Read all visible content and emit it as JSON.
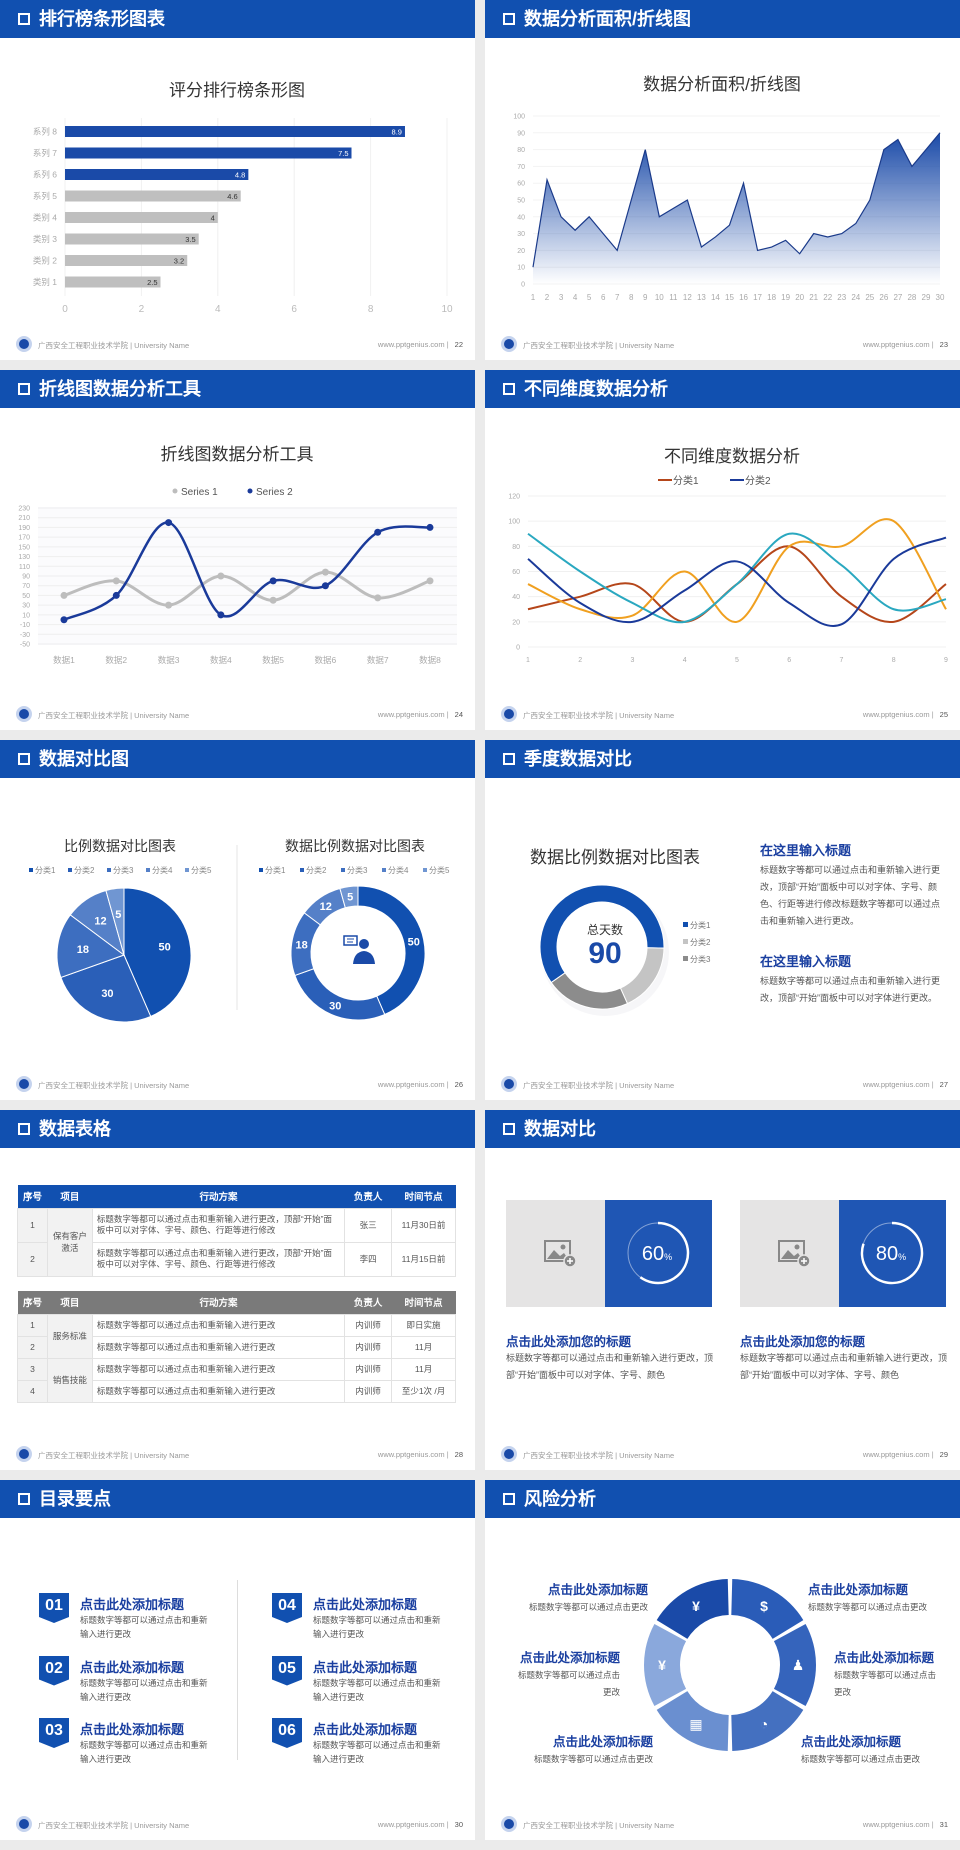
{
  "footer": {
    "school": "广西安全工程职业技术学院 | University Name",
    "url": "www.pptgenius.com",
    "separator": "|"
  },
  "colors": {
    "header": "#1150b0",
    "accent": "#1a4aa8",
    "heading_text": "#1a3fa0"
  },
  "slides": [
    {
      "title": "排行榜条形图表",
      "page": "22"
    },
    {
      "title": "数据分析面积/折线图",
      "page": "23"
    },
    {
      "title": "折线图数据分析工具",
      "page": "24"
    },
    {
      "title": "不同维度数据分析",
      "page": "25"
    },
    {
      "title": "数据对比图",
      "page": "26",
      "center_icon": "presenter-icon"
    },
    {
      "title": "季度数据对比",
      "page": "27",
      "items": [
        {
          "heading": "在这里输入标题",
          "body": "标题数字等都可以通过点击和重新输入进行更改，顶部“开始”面板中可以对字体、字号、颜色、行距等进行修改标题数字等都可以通过点击和重新输入进行更改。"
        },
        {
          "heading": "在这里输入标题",
          "body": "标题数字等都可以通过点击和重新输入进行更改，顶部“开始”面板中可以对字体进行更改。"
        }
      ]
    },
    {
      "title": "数据表格",
      "page": "28",
      "headers": [
        "序号",
        "项目",
        "行动方案",
        "负责人",
        "时间节点"
      ],
      "table1": {
        "groups": [
          "保有客户激活"
        ],
        "rows": [
          {
            "no": "1",
            "plan": "标题数字等都可以通过点击和重新输入进行更改，顶部“开始”面板中可以对字体、字号、颜色、行距等进行修改",
            "owner": "张三",
            "time": "11月30日前"
          },
          {
            "no": "2",
            "plan": "标题数字等都可以通过点击和重新输入进行更改，顶部“开始”面板中可以对字体、字号、颜色、行距等进行修改",
            "owner": "李四",
            "time": "11月15日前"
          }
        ]
      },
      "table2": {
        "groups": [
          "服务标准",
          "销售技能"
        ],
        "rows": [
          {
            "no": "1",
            "plan": "标题数字等都可以通过点击和重新输入进行更改",
            "owner": "内训师",
            "time": "即日实施"
          },
          {
            "no": "2",
            "plan": "标题数字等都可以通过点击和重新输入进行更改",
            "owner": "内训师",
            "time": "11月"
          },
          {
            "no": "3",
            "plan": "标题数字等都可以通过点击和重新输入进行更改",
            "owner": "内训师",
            "time": "11月"
          },
          {
            "no": "4",
            "plan": "标题数字等都可以通过点击和重新输入进行更改",
            "owner": "内训师",
            "time": "至少1次 /月"
          }
        ]
      }
    },
    {
      "title": "数据对比",
      "page": "29",
      "cards": [
        {
          "percent": 60,
          "value": "60",
          "unit": "%",
          "icon": "image-add-icon",
          "heading": "点击此处添加您的标题",
          "body": "标题数字等都可以通过点击和重新输入进行更改，顶部“开始”面板中可以对字体、字号、颜色"
        },
        {
          "percent": 80,
          "value": "80",
          "unit": "%",
          "icon": "image-add-icon",
          "heading": "点击此处添加您的标题",
          "body": "标题数字等都可以通过点击和重新输入进行更改，顶部“开始”面板中可以对字体、字号、颜色"
        }
      ]
    },
    {
      "title": "目录要点",
      "page": "30",
      "items": [
        {
          "num": "01",
          "heading": "点击此处添加标题",
          "body": "标题数字等都可以通过点击和重新输入进行更改"
        },
        {
          "num": "02",
          "heading": "点击此处添加标题",
          "body": "标题数字等都可以通过点击和重新输入进行更改"
        },
        {
          "num": "03",
          "heading": "点击此处添加标题",
          "body": "标题数字等都可以通过点击和重新输入进行更改"
        },
        {
          "num": "04",
          "heading": "点击此处添加标题",
          "body": "标题数字等都可以通过点击和重新输入进行更改"
        },
        {
          "num": "05",
          "heading": "点击此处添加标题",
          "body": "标题数字等都可以通过点击和重新输入进行更改"
        },
        {
          "num": "06",
          "heading": "点击此处添加标题",
          "body": "标题数字等都可以通过点击和重新输入进行更改"
        }
      ]
    },
    {
      "title": "风险分析",
      "page": "31",
      "items": [
        {
          "heading": "点击此处添加标题",
          "body": "标题数字等都可以通过点击更改",
          "icon": "money-bag-icon"
        },
        {
          "heading": "点击此处添加标题",
          "body": "标题数字等都可以通过点击更改",
          "icon": "coins-icon"
        },
        {
          "heading": "点击此处添加标题",
          "body": "标题数字等都可以通过点击更改",
          "icon": "users-icon"
        },
        {
          "heading": "点击此处添加标题",
          "body": "标题数字等都可以通过点击更改",
          "icon": "pie-chart-icon"
        },
        {
          "heading": "点击此处添加标题",
          "body": "标题数字等都可以通过点击更改",
          "icon": "building-icon"
        },
        {
          "heading": "点击此处添加标题",
          "body": "标题数字等都可以通过点击更改",
          "icon": "yen-hand-icon"
        }
      ]
    }
  ],
  "chart_data": [
    {
      "type": "bar",
      "orientation": "horizontal",
      "title": "评分排行榜条形图",
      "categories": [
        "类别 1",
        "类别 2",
        "类别 3",
        "类别 4",
        "系列 5",
        "系列 6",
        "系列 7",
        "系列 8"
      ],
      "values": [
        2.5,
        3.2,
        3.5,
        4,
        4.6,
        4.8,
        7.5,
        8.9
      ],
      "value_labels": [
        "2.5",
        "3.2",
        "3.5",
        "4",
        "4.6",
        "4.8",
        "7.5",
        "8.9"
      ],
      "bar_colors": [
        "#bfbfbf",
        "#bfbfbf",
        "#bfbfbf",
        "#bfbfbf",
        "#bfbfbf",
        "#1a4aa8",
        "#1a4aa8",
        "#1a4aa8"
      ],
      "xlim": [
        0,
        10
      ],
      "xticks": [
        "0",
        "2",
        "4",
        "6",
        "8",
        "10"
      ],
      "grid": true
    },
    {
      "type": "area",
      "title": "数据分析面积/折线图",
      "x": [
        "1",
        "2",
        "3",
        "4",
        "5",
        "6",
        "7",
        "8",
        "9",
        "10",
        "11",
        "12",
        "13",
        "14",
        "15",
        "16",
        "17",
        "18",
        "19",
        "20",
        "21",
        "22",
        "23",
        "24",
        "25",
        "26",
        "27",
        "28",
        "29",
        "30"
      ],
      "values": [
        10,
        62,
        40,
        32,
        40,
        30,
        20,
        50,
        80,
        40,
        45,
        50,
        22,
        28,
        35,
        60,
        20,
        22,
        26,
        18,
        30,
        28,
        30,
        36,
        50,
        80,
        86,
        70,
        80,
        90
      ],
      "ylim": [
        0,
        100
      ],
      "yticks": [
        "0",
        "10",
        "20",
        "30",
        "40",
        "50",
        "60",
        "70",
        "80",
        "90",
        "100"
      ],
      "color": "#1a4aa8"
    },
    {
      "type": "line",
      "smooth": true,
      "title": "折线图数据分析工具",
      "categories": [
        "数据1",
        "数据2",
        "数据3",
        "数据4",
        "数据5",
        "数据6",
        "数据7",
        "数据8"
      ],
      "series": [
        {
          "name": "Series 1",
          "values": [
            50,
            80,
            30,
            90,
            40,
            98,
            45,
            80
          ],
          "color": "#bdbdbd"
        },
        {
          "name": "Series 2",
          "values": [
            0,
            50,
            200,
            10,
            80,
            70,
            180,
            190
          ],
          "color": "#1a3a9a"
        }
      ],
      "ylim": [
        -50,
        230
      ],
      "yticks": [
        "-50",
        "-30",
        "-10",
        "10",
        "30",
        "50",
        "70",
        "90",
        "110",
        "130",
        "150",
        "170",
        "190",
        "210",
        "230"
      ],
      "legend": "top"
    },
    {
      "type": "line",
      "smooth": true,
      "title": "不同维度数据分析",
      "categories": [
        "1",
        "2",
        "3",
        "4",
        "5",
        "6",
        "7",
        "8",
        "9"
      ],
      "series": [
        {
          "name": "分类1",
          "values": [
            30,
            40,
            50,
            20,
            50,
            80,
            40,
            20,
            50
          ],
          "color": "#b5461a"
        },
        {
          "values": [
            50,
            30,
            25,
            60,
            20,
            80,
            80,
            100,
            30
          ],
          "color": "#f0a020"
        },
        {
          "values": [
            90,
            60,
            35,
            20,
            50,
            90,
            65,
            30,
            38
          ],
          "color": "#2aa8c0"
        },
        {
          "name": "分类2",
          "values": [
            70,
            35,
            20,
            45,
            68,
            35,
            18,
            70,
            87
          ],
          "color": "#1a3a9a"
        }
      ],
      "ylim": [
        0,
        120
      ],
      "yticks": [
        "0",
        "20",
        "40",
        "60",
        "80",
        "100",
        "120"
      ],
      "legend": "top"
    },
    {
      "type": "pie",
      "title": "比例数据对比图表",
      "categories": [
        "分类1",
        "分类2",
        "分类3",
        "分类4",
        "分类5"
      ],
      "values": [
        50,
        30,
        18,
        12,
        5
      ],
      "colors": [
        "#1150b0",
        "#2a5fb8",
        "#3d6ec0",
        "#5580c8",
        "#7096d2"
      ],
      "legend": "top"
    },
    {
      "type": "donut",
      "title": "数据比例数据对比图表",
      "categories": [
        "分类1",
        "分类2",
        "分类3",
        "分类4",
        "分类5"
      ],
      "values": [
        50,
        30,
        18,
        12,
        5
      ],
      "colors": [
        "#1150b0",
        "#2a5fb8",
        "#3d6ec0",
        "#5580c8",
        "#7096d2"
      ],
      "legend": "top"
    },
    {
      "type": "donut",
      "title": "数据比例数据对比图表",
      "center_label": "总天数",
      "center_value": "90",
      "categories": [
        "分类1",
        "分类2",
        "分类3"
      ],
      "values": [
        60,
        18,
        22
      ],
      "colors": [
        "#1150b0",
        "#c4c4c4",
        "#8c8c8c"
      ],
      "legend": "right"
    }
  ]
}
